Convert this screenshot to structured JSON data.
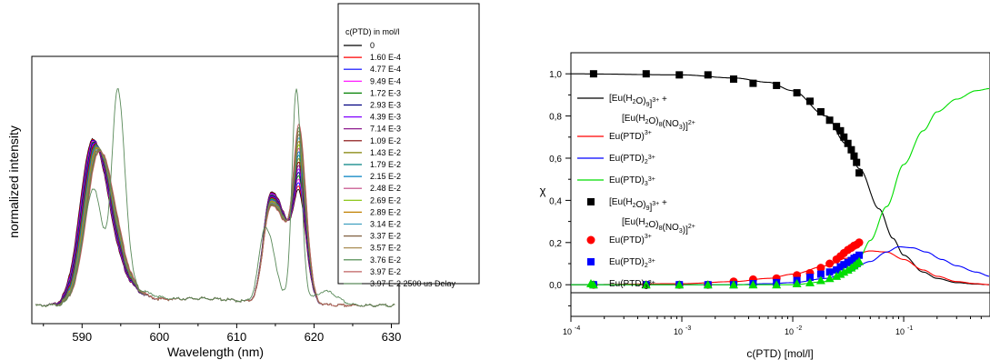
{
  "chart_data": [
    {
      "type": "line",
      "title": "",
      "xlabel": "Wavelength (nm)",
      "ylabel": "normalized intensity",
      "xlim": [
        583.5,
        631
      ],
      "xticks": [
        590,
        600,
        610,
        620,
        630
      ],
      "y_ticks_visible": false,
      "legend": {
        "title": "c(PTD) in mol/l",
        "placement": "right-outside",
        "entries": [
          {
            "name": "0",
            "color": "#000000"
          },
          {
            "name": "1.60 E-4",
            "color": "#ff0000"
          },
          {
            "name": "4.77 E-4",
            "color": "#0000ff"
          },
          {
            "name": "9.49 E-4",
            "color": "#ff00ff"
          },
          {
            "name": "1.72 E-3",
            "color": "#008000"
          },
          {
            "name": "2.93 E-3",
            "color": "#000080"
          },
          {
            "name": "4.39 E-3",
            "color": "#8000ff"
          },
          {
            "name": "7.14 E-3",
            "color": "#800080"
          },
          {
            "name": "1.09 E-2",
            "color": "#800000"
          },
          {
            "name": "1.43 E-2",
            "color": "#808000"
          },
          {
            "name": "1.79 E-2",
            "color": "#008080"
          },
          {
            "name": "2.15 E-2",
            "color": "#0080c0"
          },
          {
            "name": "2.48 E-2",
            "color": "#c04080"
          },
          {
            "name": "2.69 E-2",
            "color": "#80c000"
          },
          {
            "name": "2.89 E-2",
            "color": "#c08000"
          },
          {
            "name": "3.14 E-2",
            "color": "#40a0c0"
          },
          {
            "name": "3.37 E-2",
            "color": "#806040"
          },
          {
            "name": "3.57 E-2",
            "color": "#a08040"
          },
          {
            "name": "3.76 E-2",
            "color": "#408040"
          },
          {
            "name": "3.97 E-2",
            "color": "#c06060"
          },
          {
            "name": "3.97 E-2 2500 us Delay",
            "color": "#5a8a5a"
          }
        ]
      },
      "peaks": {
        "first_group": {
          "start_center": 591.3,
          "start_height": 0.68,
          "end_center": 592.2,
          "end_height": 0.615
        },
        "second_group": {
          "start_center": 618.1,
          "start_height": 0.38,
          "end_center": 618.1,
          "end_height": 0.68
        },
        "delay_curve": {
          "peak1_center": 594.6,
          "peak1_height": 0.89,
          "peak2_center": 617.7,
          "peak2_height": 0.93
        }
      }
    },
    {
      "type": "line",
      "title": "",
      "xlabel": "c(PTD) [mol/l]",
      "ylabel": "χ",
      "x_scale": "log",
      "xlim": [
        0.0001,
        0.6
      ],
      "ylim": [
        -0.15,
        1.1
      ],
      "xtick_labels": [
        "10-4",
        "10-3",
        "10-2",
        "10-1"
      ],
      "ytick_labels": [
        "0,0",
        "0,2",
        "0,4",
        "0,6",
        "0,8",
        "1,0"
      ],
      "yticks": [
        0,
        0.2,
        0.4,
        0.6,
        0.8,
        1.0
      ],
      "legend": {
        "placement": "top-left",
        "entries": [
          {
            "kind": "line",
            "color": "#000000",
            "name": "[Eu(H2O)9]3+ + [Eu(H2O)8(NO3)]2+"
          },
          {
            "kind": "line",
            "color": "#ff0000",
            "name": "Eu(PTD)3+"
          },
          {
            "kind": "line",
            "color": "#0000ff",
            "name": "Eu(PTD)23+"
          },
          {
            "kind": "line",
            "color": "#00dd00",
            "name": "Eu(PTD)33+"
          },
          {
            "kind": "square",
            "color": "#000000",
            "name": "[Eu(H2O)9]3+ + [Eu(H2O)8(NO3)]2+"
          },
          {
            "kind": "circle",
            "color": "#ff0000",
            "name": "Eu(PTD)3+"
          },
          {
            "kind": "square",
            "color": "#0000ff",
            "name": "Eu(PTD)23+"
          },
          {
            "kind": "triangle",
            "color": "#00dd00",
            "name": "Eu(PTD)33+"
          }
        ]
      },
      "x": [
        0.00016,
        0.000477,
        0.000949,
        0.00172,
        0.00293,
        0.00439,
        0.00714,
        0.0109,
        0.0143,
        0.0179,
        0.0215,
        0.0248,
        0.0269,
        0.0289,
        0.0314,
        0.0337,
        0.0357,
        0.0376,
        0.0397
      ],
      "series": [
        {
          "name": "[Eu(H2O)9]3+ + [Eu(H2O)8(NO3)]2+",
          "marker": "square",
          "color": "#000000",
          "values": [
            1.0,
            1.0,
            0.995,
            0.995,
            0.975,
            0.955,
            0.945,
            0.91,
            0.87,
            0.82,
            0.78,
            0.75,
            0.73,
            0.7,
            0.67,
            0.64,
            0.61,
            0.58,
            0.53
          ]
        },
        {
          "name": "Eu(PTD)3+",
          "marker": "circle",
          "color": "#ff0000",
          "values": [
            0.0,
            0.0,
            0.0,
            0.0,
            0.015,
            0.025,
            0.03,
            0.045,
            0.055,
            0.08,
            0.1,
            0.12,
            0.135,
            0.15,
            0.165,
            0.175,
            0.185,
            0.19,
            0.2
          ]
        },
        {
          "name": "Eu(PTD)23+",
          "marker": "square",
          "color": "#0000ff",
          "values": [
            0.0,
            0.0,
            0.0,
            0.0,
            0.0,
            0.005,
            0.01,
            0.02,
            0.035,
            0.05,
            0.06,
            0.07,
            0.085,
            0.095,
            0.105,
            0.115,
            0.125,
            0.13,
            0.14
          ]
        },
        {
          "name": "Eu(PTD)33+",
          "marker": "triangle",
          "color": "#00dd00",
          "values": [
            0.0,
            0.0,
            0.0,
            0.0,
            0.0,
            0.0,
            0.0,
            0.005,
            0.01,
            0.02,
            0.03,
            0.04,
            0.05,
            0.06,
            0.07,
            0.08,
            0.09,
            0.1,
            0.11
          ]
        }
      ],
      "fit_curves": {
        "color_by_species": {
          "free": "#000000",
          "ML": "#ff0000",
          "ML2": "#0000ff",
          "ML3": "#00dd00"
        },
        "x_range": [
          0.0001,
          0.6
        ],
        "black": {
          "x": [
            0.0001,
            0.001,
            0.003,
            0.006,
            0.01,
            0.02,
            0.03,
            0.04,
            0.06,
            0.08,
            0.1,
            0.15,
            0.2,
            0.3,
            0.45,
            0.6
          ],
          "y": [
            1.0,
            0.995,
            0.98,
            0.96,
            0.92,
            0.8,
            0.67,
            0.55,
            0.36,
            0.22,
            0.14,
            0.06,
            0.03,
            0.01,
            0.003,
            0.0
          ]
        },
        "red": {
          "x": [
            0.0001,
            0.001,
            0.003,
            0.006,
            0.01,
            0.02,
            0.03,
            0.05,
            0.07,
            0.1,
            0.15,
            0.2,
            0.3,
            0.45,
            0.6
          ],
          "y": [
            0.0,
            0.005,
            0.015,
            0.03,
            0.05,
            0.09,
            0.125,
            0.16,
            0.155,
            0.12,
            0.07,
            0.04,
            0.015,
            0.005,
            0.0
          ]
        },
        "blue": {
          "x": [
            0.0001,
            0.003,
            0.006,
            0.01,
            0.02,
            0.03,
            0.05,
            0.07,
            0.09,
            0.12,
            0.16,
            0.22,
            0.3,
            0.45,
            0.6
          ],
          "y": [
            0.0,
            0.0,
            0.005,
            0.01,
            0.03,
            0.055,
            0.11,
            0.155,
            0.18,
            0.175,
            0.155,
            0.12,
            0.09,
            0.06,
            0.04
          ]
        },
        "green": {
          "x": [
            0.0001,
            0.006,
            0.01,
            0.02,
            0.03,
            0.04,
            0.05,
            0.07,
            0.1,
            0.15,
            0.2,
            0.3,
            0.45,
            0.6
          ],
          "y": [
            0.0,
            0.0,
            0.0,
            0.015,
            0.06,
            0.13,
            0.21,
            0.37,
            0.57,
            0.73,
            0.82,
            0.88,
            0.92,
            0.93
          ]
        }
      }
    }
  ]
}
